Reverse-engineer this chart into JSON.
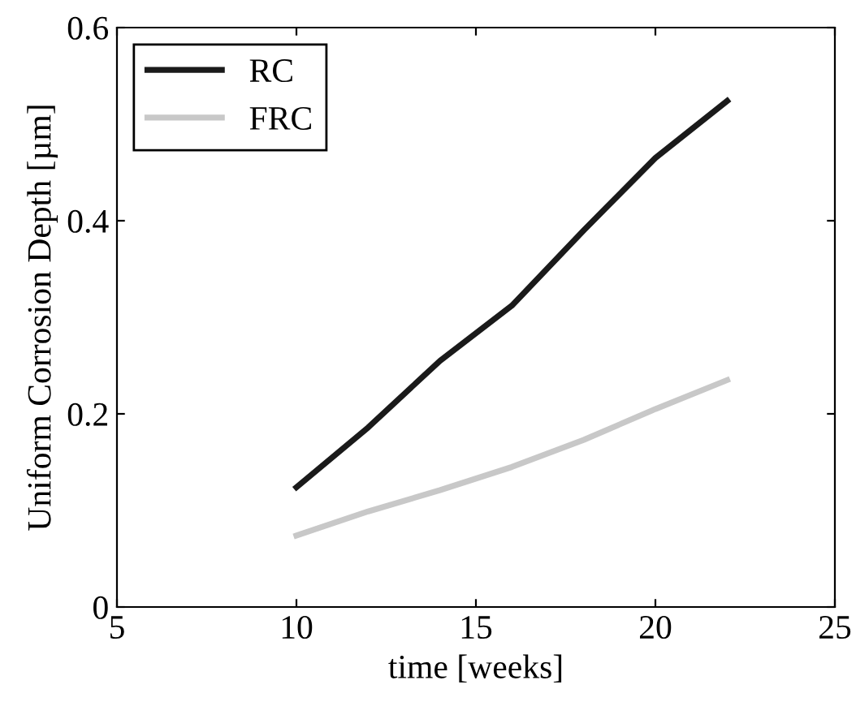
{
  "chart_data": {
    "type": "line",
    "xlabel": "time [weeks]",
    "ylabel": "Uniform Corrosion Depth [µm]",
    "x": [
      10,
      12,
      14,
      16,
      18,
      20,
      22
    ],
    "series": [
      {
        "name": "RC",
        "color": "#1a1a1a",
        "values": [
          0.124,
          0.186,
          0.255,
          0.312,
          0.39,
          0.465,
          0.524
        ]
      },
      {
        "name": "FRC",
        "color": "#c8c8c8",
        "values": [
          0.074,
          0.099,
          0.121,
          0.145,
          0.173,
          0.205,
          0.235
        ]
      }
    ],
    "xlim": [
      5,
      25
    ],
    "xticks": [
      5,
      10,
      15,
      20,
      25
    ],
    "ylim": [
      0,
      0.6
    ],
    "yticks": [
      {
        "value": 0,
        "label": "0"
      },
      0.2,
      0.4,
      0.6
    ],
    "grid": false,
    "legend": "top left",
    "marker": "none",
    "line_style": "solid"
  }
}
